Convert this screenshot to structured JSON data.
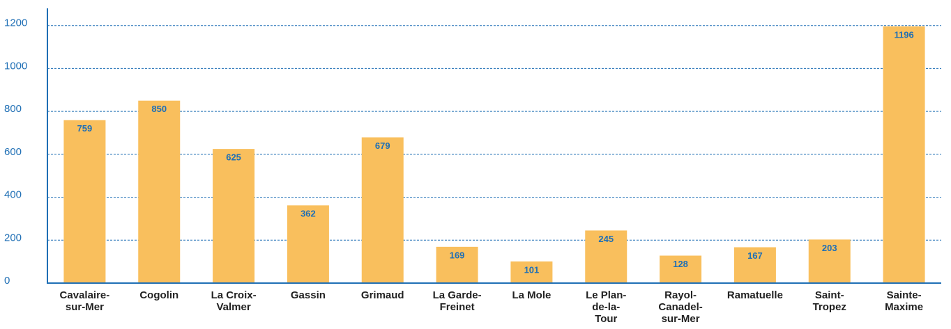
{
  "chart_data": {
    "type": "bar",
    "categories": [
      [
        "Cavalaire-",
        "sur-Mer"
      ],
      [
        "Cogolin"
      ],
      [
        "La Croix-",
        "Valmer"
      ],
      [
        "Gassin"
      ],
      [
        "Grimaud"
      ],
      [
        "La Garde-",
        "Freinet"
      ],
      [
        "La Mole"
      ],
      [
        "Le Plan-",
        "de-la-",
        "Tour"
      ],
      [
        "Rayol-",
        "Canadel-",
        "sur-Mer"
      ],
      [
        "Ramatuelle"
      ],
      [
        "Saint-",
        "Tropez"
      ],
      [
        "Sainte-",
        "Maxime"
      ]
    ],
    "values": [
      759,
      850,
      625,
      362,
      679,
      169,
      101,
      245,
      128,
      167,
      203,
      1196
    ],
    "color": "#f9bf5d",
    "ylim": [
      0,
      1280
    ],
    "yticks": [
      0,
      200,
      400,
      600,
      800,
      1000,
      1200
    ],
    "grid": true
  }
}
